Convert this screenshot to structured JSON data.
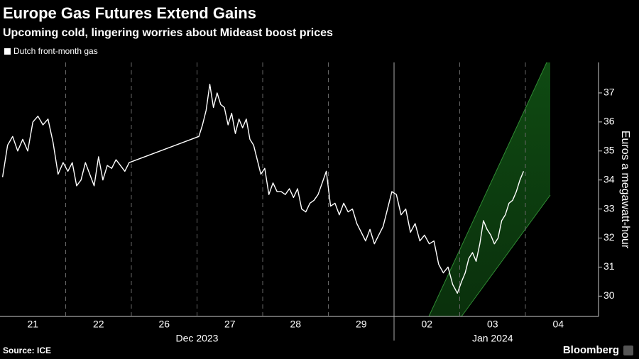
{
  "chart_data": {
    "type": "line",
    "title": "Europe Gas Futures Extend Gains",
    "subtitle": "Upcoming cold, lingering worries about Mideast boost prices",
    "y_axis_label": "Euros a megawatt-hour",
    "source": "Source: ICE",
    "brand": "Bloomberg",
    "categories": [
      "21",
      "22",
      "26",
      "27",
      "28",
      "29",
      "02",
      "03",
      "04"
    ],
    "x_groups": [
      "Dec 2023",
      "Jan 2024"
    ],
    "ylim": [
      29.3,
      38.05
    ],
    "yticks": [
      30,
      31,
      32,
      33,
      34,
      35,
      36,
      37
    ],
    "grid": true,
    "series": [
      {
        "name": "Dutch front-month gas",
        "color": "#ffffff",
        "x": [
          "2023-12-21",
          "2023-12-21",
          "2023-12-21",
          "2023-12-21",
          "2023-12-21",
          "2023-12-21",
          "2023-12-21",
          "2023-12-21",
          "2023-12-21",
          "2023-12-21",
          "2023-12-21",
          "2023-12-21",
          "2023-12-21",
          "2023-12-22",
          "2023-12-22",
          "2023-12-22",
          "2023-12-22",
          "2023-12-22",
          "2023-12-22",
          "2023-12-22",
          "2023-12-22",
          "2023-12-22",
          "2023-12-22",
          "2023-12-22",
          "2023-12-22",
          "2023-12-22",
          "2023-12-22",
          "2023-12-22",
          "2023-12-27",
          "2023-12-27",
          "2023-12-27",
          "2023-12-27",
          "2023-12-27",
          "2023-12-27",
          "2023-12-27",
          "2023-12-27",
          "2023-12-27",
          "2023-12-27",
          "2023-12-27",
          "2023-12-27",
          "2023-12-27",
          "2023-12-27",
          "2023-12-27",
          "2023-12-27",
          "2023-12-27",
          "2023-12-27",
          "2023-12-28",
          "2023-12-28",
          "2023-12-28",
          "2023-12-28",
          "2023-12-28",
          "2023-12-28",
          "2023-12-28",
          "2023-12-28",
          "2023-12-28",
          "2023-12-28",
          "2023-12-28",
          "2023-12-28",
          "2023-12-28",
          "2023-12-28",
          "2023-12-28",
          "2023-12-28",
          "2023-12-29",
          "2023-12-29",
          "2023-12-29",
          "2023-12-29",
          "2023-12-29",
          "2023-12-29",
          "2023-12-29",
          "2023-12-29",
          "2023-12-29",
          "2023-12-29",
          "2023-12-29",
          "2023-12-29",
          "2023-12-29",
          "2023-12-29",
          "2023-12-29",
          "2024-01-02",
          "2024-01-02",
          "2024-01-02",
          "2024-01-02",
          "2024-01-02",
          "2024-01-02",
          "2024-01-02",
          "2024-01-02",
          "2024-01-02",
          "2024-01-02",
          "2024-01-02",
          "2024-01-02",
          "2024-01-02",
          "2024-01-02",
          "2024-01-03",
          "2024-01-03",
          "2024-01-03",
          "2024-01-03",
          "2024-01-03",
          "2024-01-03",
          "2024-01-03",
          "2024-01-03",
          "2024-01-03",
          "2024-01-03",
          "2024-01-03",
          "2024-01-03",
          "2024-01-03",
          "2024-01-03",
          "2024-01-03",
          "2024-01-03",
          "2024-01-03",
          "2024-01-03"
        ],
        "values": [
          34.1,
          35.2,
          35.5,
          35.0,
          35.4,
          35.0,
          36.0,
          36.2,
          35.9,
          36.1,
          35.3,
          34.2,
          34.6,
          34.3,
          34.6,
          33.8,
          34.0,
          34.6,
          34.2,
          33.8,
          34.8,
          34.0,
          34.5,
          34.4,
          34.7,
          34.5,
          34.3,
          34.6,
          35.5,
          35.9,
          36.4,
          37.3,
          36.5,
          37.0,
          36.6,
          36.5,
          35.9,
          36.3,
          35.6,
          36.1,
          35.8,
          36.1,
          35.4,
          35.2,
          34.7,
          34.2,
          34.4,
          33.5,
          33.9,
          33.6,
          33.6,
          33.5,
          33.7,
          33.4,
          33.7,
          33.0,
          32.9,
          33.2,
          33.3,
          33.5,
          33.9,
          34.3,
          33.1,
          33.2,
          32.8,
          33.2,
          32.9,
          33.0,
          32.5,
          32.2,
          31.9,
          32.3,
          31.8,
          32.1,
          32.4,
          33.0,
          33.6,
          33.5,
          32.8,
          33.0,
          32.2,
          32.5,
          31.9,
          32.1,
          31.8,
          31.9,
          31.1,
          30.8,
          31.0,
          30.4,
          30.1,
          30.5,
          30.8,
          31.3,
          31.5,
          31.2,
          31.8,
          32.6,
          32.3,
          32.1,
          31.8,
          32.0,
          32.6,
          32.8,
          33.2,
          33.3,
          33.6,
          34.0,
          34.3
        ]
      }
    ]
  }
}
